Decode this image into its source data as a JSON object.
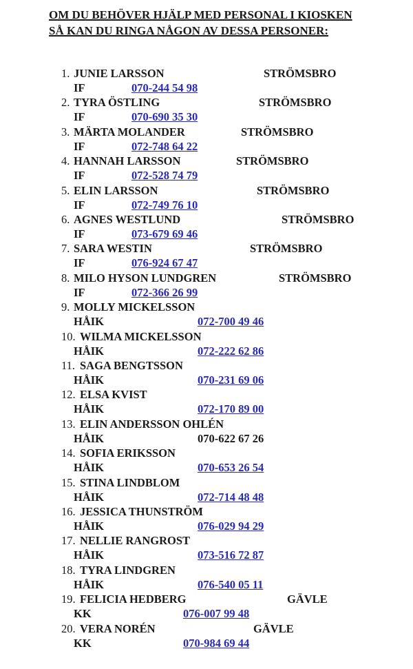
{
  "heading": "OM DU BEHÖVER HJÄLP MED PERSONAL I KIOSKEN SÅ KAN DU RINGA NÅGON AV DESSA PERSONER:",
  "link_color": "#2a2ab4",
  "contacts": [
    {
      "num": "1.",
      "name": "JUNIE LARSSON",
      "city": "STRÖMSBRO",
      "club": "IF",
      "phone": "070-244 54 98",
      "link": true
    },
    {
      "num": "2.",
      "name": "TYRA ÖSTLING",
      "city": "STRÖMSBRO",
      "club": "IF",
      "phone": "070-690 35 30",
      "link": true
    },
    {
      "num": "3.",
      "name": "MÄRTA MOLANDER",
      "city": "STRÖMSBRO",
      "club": "IF",
      "phone": "072-748 64 22",
      "link": true
    },
    {
      "num": "4.",
      "name": "HANNAH LARSSON",
      "city": "STRÖMSBRO",
      "club": "IF",
      "phone": "072-528 74 79",
      "link": true
    },
    {
      "num": "5.",
      "name": "ELIN LARSSON",
      "city": "STRÖMSBRO",
      "club": "IF",
      "phone": "072-749 76 10",
      "link": true
    },
    {
      "num": "6.",
      "name": "AGNES WESTLUND",
      "city": "STRÖMSBRO",
      "club": "IF",
      "phone": "073-679 69 46",
      "link": true
    },
    {
      "num": "7.",
      "name": "SARA WESTIN",
      "city": "STRÖMSBRO",
      "club": "IF",
      "phone": "076-924 67 47",
      "link": true
    },
    {
      "num": "8.",
      "name": "MILO HYSON LUNDGREN",
      "city": "STRÖMSBRO",
      "club": "IF",
      "phone": "072-366 26 99",
      "link": true
    },
    {
      "num": "9.",
      "name": "MOLLY MICKELSSON",
      "city": "",
      "club": "HÅIK",
      "phone": "072-700 49 46",
      "link": true
    },
    {
      "num": "10.",
      "name": "WILMA MICKELSSON",
      "city": "",
      "club": "HÅIK",
      "phone": "072-222 62 86",
      "link": true
    },
    {
      "num": "11.",
      "name": "SAGA BENGTSSON",
      "city": "",
      "club": "HÅIK",
      "phone": "070-231 69 06",
      "link": true
    },
    {
      "num": "12.",
      "name": "ELSA KVIST",
      "city": "",
      "club": "HÅIK",
      "phone": "072-170 89 00",
      "link": true
    },
    {
      "num": "13.",
      "name": "ELIN ANDERSSON OHLÉN",
      "city": "",
      "club": "HÅIK",
      "phone": "070-622 67 26",
      "link": false
    },
    {
      "num": "14.",
      "name": "SOFIA ERIKSSON",
      "city": "",
      "club": "HÅIK",
      "phone": "070-653 26 54",
      "link": true
    },
    {
      "num": "15.",
      "name": "STINA LINDBLOM",
      "city": "",
      "club": "HÅIK",
      "phone": "072-714 48 48",
      "link": true
    },
    {
      "num": "16.",
      "name": "JESSICA THUNSTRÖM",
      "city": "",
      "club": "HÅIK",
      "phone": "076-029 94 29",
      "link": true
    },
    {
      "num": "17.",
      "name": "NELLIE RANGROST",
      "city": "",
      "club": "HÅIK",
      "phone": "073-516 72 87",
      "link": true
    },
    {
      "num": "18.",
      "name": "TYRA LINDGREN",
      "city": "",
      "club": "HÅIK",
      "phone": "076-540 05 11",
      "link": true
    },
    {
      "num": "19.",
      "name": "FELICIA HEDBERG",
      "city": "GÄVLE",
      "club": "KK",
      "phone": "076-007 99 48",
      "link": true
    },
    {
      "num": "20.",
      "name": "VERA NORÉN",
      "city": "GÄVLE",
      "club": "KK",
      "phone": "070-984 69 44",
      "link": true
    }
  ]
}
